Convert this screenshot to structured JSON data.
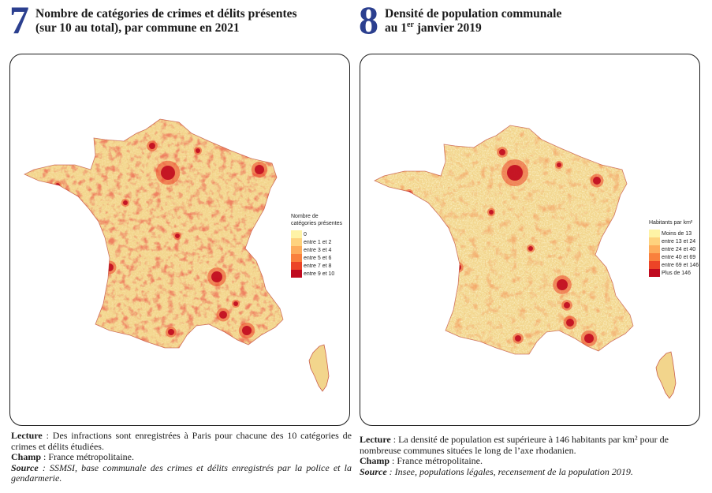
{
  "figures": [
    {
      "number": "7",
      "title_line1": "Nombre de catégories de crimes et délits présentes",
      "title_line2": "(sur 10 au total), par commune en 2021",
      "legend": {
        "title_line1": "Nombre de",
        "title_line2": "catégories présentes",
        "items": [
          {
            "label": "0",
            "color": "#fef3a6"
          },
          {
            "label": "entre 1 et 2",
            "color": "#fed27e"
          },
          {
            "label": "entre 3 et 4",
            "color": "#fdac5c"
          },
          {
            "label": "entre 5 et 6",
            "color": "#f9803d"
          },
          {
            "label": "entre 7 et 8",
            "color": "#ec4427"
          },
          {
            "label": "entre 9 et 10",
            "color": "#c00a1f"
          }
        ]
      },
      "notes": {
        "lecture_label": "Lecture",
        "lecture_text": " : Des infractions sont enregistrées à Paris pour chacune des 10 catégories de crimes et délits étudiées.",
        "champ_label": "Champ",
        "champ_text": " : France métropolitaine.",
        "source_label": "Source",
        "source_text": " : SSMSI, base communale des crimes et délits enregistrés par la police et la gendarmerie."
      }
    },
    {
      "number": "8",
      "title_line1": "Densité de population communale",
      "title_line2_pre": "au 1",
      "title_line2_sup": "er",
      "title_line2_post": " janvier 2019",
      "legend": {
        "title": "Habitants par km²",
        "items": [
          {
            "label": "Moins de 13",
            "color": "#fef3a6"
          },
          {
            "label": "entre 13 et 24",
            "color": "#fed27e"
          },
          {
            "label": "entre 24 et 40",
            "color": "#fdac5c"
          },
          {
            "label": "entre 40 et 69",
            "color": "#f9803d"
          },
          {
            "label": "entre 69 et 146",
            "color": "#ec4427"
          },
          {
            "label": "Plus de 146",
            "color": "#c00a1f"
          }
        ]
      },
      "notes": {
        "lecture_label": "Lecture",
        "lecture_text": " : La densité de population est supérieure à 146 habitants par km² pour de nombreuse communes situées le long de l’axe rhodanien.",
        "champ_label": "Champ",
        "champ_text": " : France métropolitaine.",
        "source_label": "Source",
        "source_text": " : Insee, populations légales, recensement de la population 2019."
      }
    }
  ],
  "map_colors": {
    "base": "#f2d58c",
    "texture_light": "#fbeeb8",
    "texture_mid": "#f6c66e",
    "hotspot_outer": "#ec4427",
    "hotspot_inner": "#c00a1f",
    "outline": "#b5271c"
  }
}
